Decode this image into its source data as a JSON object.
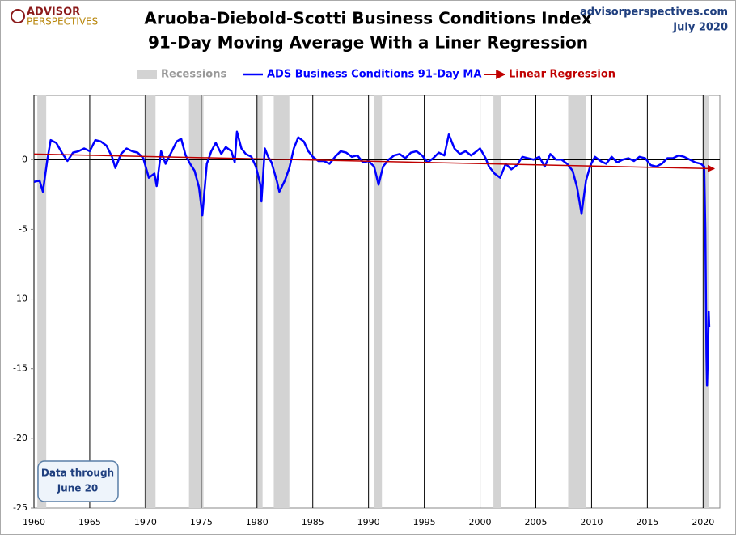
{
  "chart_data": {
    "type": "line",
    "title": "Aruoba-Diebold-Scotti Business Conditions Index",
    "subtitle": "91-Day Moving Average With a Liner Regression",
    "logo": [
      "ADVISOR",
      "PERSPECTIVES"
    ],
    "source": "advisorperspectives.com",
    "date": "July 2020",
    "annotation": [
      "Data through",
      "June 20"
    ],
    "xlim": [
      1960,
      2021.5
    ],
    "xticks": [
      1960,
      1965,
      1970,
      1975,
      1980,
      1985,
      1990,
      1995,
      2000,
      2005,
      2010,
      2015,
      2020
    ],
    "ylim": [
      -25,
      4.6
    ],
    "yticks": [
      0,
      -5,
      -10,
      -15,
      -20,
      -25
    ],
    "grid": true,
    "recessions": {
      "name": "Recessions",
      "color": "#d3d3d3",
      "periods": [
        [
          1960.3,
          1961.1
        ],
        [
          1969.9,
          1970.9
        ],
        [
          1973.9,
          1975.2
        ],
        [
          1980.0,
          1980.5
        ],
        [
          1981.5,
          1982.9
        ],
        [
          1990.5,
          1991.2
        ],
        [
          2001.2,
          2001.9
        ],
        [
          2007.9,
          2009.5
        ],
        [
          2020.1,
          2020.5
        ]
      ]
    },
    "series": [
      {
        "name": "ADS Business Conditions 91-Day MA",
        "color": "#0000ff",
        "x": [
          1960.0,
          1960.5,
          1960.8,
          1961.2,
          1961.5,
          1962.0,
          1962.5,
          1963.0,
          1963.5,
          1964.0,
          1964.5,
          1965.0,
          1965.5,
          1966.0,
          1966.5,
          1967.0,
          1967.3,
          1967.8,
          1968.3,
          1968.8,
          1969.3,
          1969.8,
          1970.3,
          1970.8,
          1971.0,
          1971.4,
          1971.8,
          1972.3,
          1972.8,
          1973.2,
          1973.6,
          1974.0,
          1974.4,
          1974.8,
          1975.1,
          1975.5,
          1975.9,
          1976.3,
          1976.8,
          1977.2,
          1977.7,
          1978.0,
          1978.2,
          1978.6,
          1979.0,
          1979.5,
          1979.9,
          1980.3,
          1980.4,
          1980.7,
          1981.0,
          1981.3,
          1981.8,
          1982.0,
          1982.5,
          1982.9,
          1983.3,
          1983.7,
          1984.2,
          1984.6,
          1985.0,
          1985.5,
          1986.0,
          1986.5,
          1987.0,
          1987.5,
          1988.0,
          1988.5,
          1989.0,
          1989.5,
          1990.0,
          1990.5,
          1990.9,
          1991.3,
          1991.8,
          1992.3,
          1992.8,
          1993.3,
          1993.8,
          1994.3,
          1994.8,
          1995.3,
          1995.8,
          1996.3,
          1996.8,
          1997.2,
          1997.7,
          1998.2,
          1998.7,
          1999.2,
          1999.7,
          2000.0,
          2000.5,
          2000.8,
          2001.3,
          2001.8,
          2002.3,
          2002.8,
          2003.3,
          2003.8,
          2004.3,
          2004.8,
          2005.3,
          2005.8,
          2006.3,
          2006.8,
          2007.3,
          2007.8,
          2008.3,
          2008.7,
          2009.1,
          2009.5,
          2009.9,
          2010.3,
          2010.8,
          2011.3,
          2011.8,
          2012.3,
          2012.8,
          2013.3,
          2013.8,
          2014.3,
          2014.8,
          2015.3,
          2015.8,
          2016.3,
          2016.8,
          2017.3,
          2017.8,
          2018.3,
          2018.8,
          2019.3,
          2019.8,
          2020.1,
          2020.2,
          2020.3,
          2020.35,
          2020.45,
          2020.5,
          2020.55
        ],
        "values": [
          -1.6,
          -1.5,
          -2.3,
          0,
          1.4,
          1.2,
          0.5,
          -0.1,
          0.5,
          0.6,
          0.8,
          0.6,
          1.4,
          1.3,
          1.0,
          0.2,
          -0.6,
          0.4,
          0.8,
          0.6,
          0.5,
          0.1,
          -1.3,
          -1.0,
          -1.9,
          0.6,
          -0.3,
          0.5,
          1.3,
          1.5,
          0.3,
          -0.3,
          -0.8,
          -2.0,
          -4.0,
          -0.3,
          0.6,
          1.2,
          0.4,
          0.9,
          0.6,
          -0.2,
          2.0,
          0.8,
          0.4,
          0.2,
          -0.5,
          -1.8,
          -3.0,
          0.8,
          0.2,
          -0.2,
          -1.6,
          -2.3,
          -1.5,
          -0.6,
          0.8,
          1.6,
          1.3,
          0.6,
          0.2,
          -0.1,
          -0.1,
          -0.3,
          0.2,
          0.6,
          0.5,
          0.2,
          0.3,
          -0.2,
          -0.1,
          -0.5,
          -1.8,
          -0.5,
          0,
          0.3,
          0.4,
          0.1,
          0.5,
          0.6,
          0.3,
          -0.2,
          0.1,
          0.5,
          0.3,
          1.8,
          0.8,
          0.4,
          0.6,
          0.3,
          0.6,
          0.8,
          0.1,
          -0.5,
          -1.0,
          -1.3,
          -0.3,
          -0.7,
          -0.4,
          0.2,
          0.1,
          0,
          0.2,
          -0.5,
          0.4,
          0,
          0,
          -0.3,
          -0.8,
          -2.0,
          -3.9,
          -1.5,
          -0.4,
          0.2,
          -0.1,
          -0.3,
          0.2,
          -0.2,
          0,
          0.1,
          -0.1,
          0.2,
          0.1,
          -0.4,
          -0.5,
          -0.3,
          0.1,
          0.1,
          0.3,
          0.2,
          0,
          -0.2,
          -0.3,
          -0.5,
          -5.0,
          -14.0,
          -16.2,
          -13.5,
          -10.9,
          -12.0
        ]
      },
      {
        "name": "Linear Regression",
        "color": "#c00000",
        "arrow": true,
        "x": [
          1960,
          2021
        ],
        "values": [
          0.4,
          -0.65
        ]
      }
    ]
  }
}
